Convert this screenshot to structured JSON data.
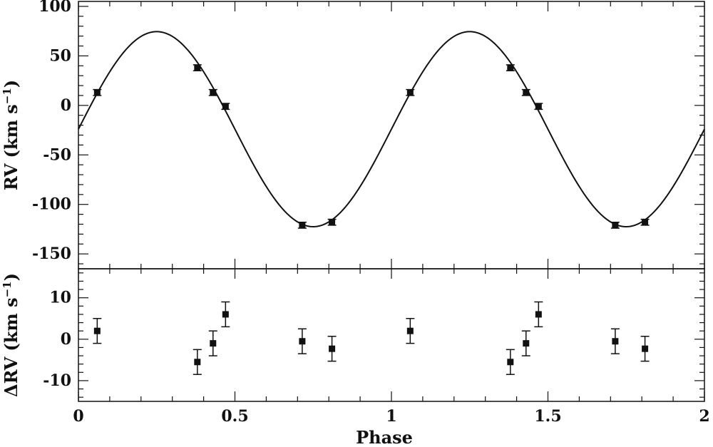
{
  "chart_data": [
    {
      "type": "scatter",
      "panel": "top",
      "ylabel_parts": {
        "main": "RV",
        "unit": "km s",
        "exp": "−1"
      },
      "xlim": [
        0,
        2
      ],
      "ylim": [
        -165,
        105
      ],
      "yticks_major": [
        100,
        50,
        0,
        -50,
        -100,
        -150
      ],
      "ytick_labels": [
        "100",
        "50",
        "0",
        "-50",
        "-100",
        "-150"
      ],
      "model_curve": {
        "gamma": -24,
        "amplitude": 98.5,
        "phase_of_max": 0.25,
        "period": 1
      },
      "series": [
        {
          "x": [
            0.06,
            0.38,
            0.43,
            0.47,
            0.715,
            0.81,
            1.06,
            1.38,
            1.43,
            1.47,
            1.715,
            1.81
          ],
          "y": [
            13,
            38,
            13,
            -1,
            -121,
            -118,
            13,
            38,
            13,
            -1,
            -121,
            -118
          ],
          "err": [
            3,
            3,
            3,
            3,
            3,
            3,
            3,
            3,
            3,
            3,
            3,
            3
          ]
        }
      ]
    },
    {
      "type": "scatter",
      "panel": "bottom",
      "xlabel": "Phase",
      "ylabel_parts": {
        "main": "ΔRV",
        "unit": "km s",
        "exp": "−1"
      },
      "xlim": [
        0,
        2
      ],
      "ylim": [
        -15,
        17
      ],
      "xticks_major": [
        0,
        0.5,
        1,
        1.5,
        2
      ],
      "xtick_labels": [
        "0",
        "0.5",
        "1",
        "1.5",
        "2"
      ],
      "yticks_major": [
        10,
        0,
        -10
      ],
      "ytick_labels": [
        "10",
        "0",
        "-10"
      ],
      "zero_line": true,
      "series": [
        {
          "x": [
            0.06,
            0.38,
            0.43,
            0.47,
            0.715,
            0.81,
            1.06,
            1.38,
            1.43,
            1.47,
            1.715,
            1.81
          ],
          "y": [
            2,
            -5.5,
            -1,
            6,
            -0.5,
            -2.3,
            2,
            -5.5,
            -1,
            6,
            -0.5,
            -2.3
          ],
          "err": [
            3,
            3,
            3,
            3,
            3,
            3,
            3,
            3,
            3,
            3,
            3,
            3
          ]
        }
      ]
    }
  ]
}
